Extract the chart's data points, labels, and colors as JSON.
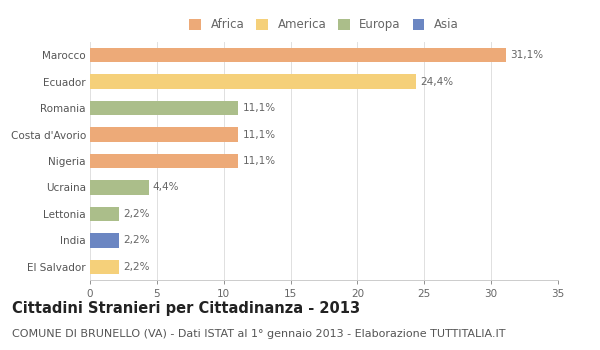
{
  "countries": [
    "Marocco",
    "Ecuador",
    "Romania",
    "Costa d'Avorio",
    "Nigeria",
    "Ucraina",
    "Lettonia",
    "India",
    "El Salvador"
  ],
  "values": [
    31.1,
    24.4,
    11.1,
    11.1,
    11.1,
    4.4,
    2.2,
    2.2,
    2.2
  ],
  "labels": [
    "31,1%",
    "24,4%",
    "11,1%",
    "11,1%",
    "11,1%",
    "4,4%",
    "2,2%",
    "2,2%",
    "2,2%"
  ],
  "colors": [
    "#EDAA78",
    "#F5D07A",
    "#ABBE8A",
    "#EDAA78",
    "#EDAA78",
    "#ABBE8A",
    "#ABBE8A",
    "#6B86C2",
    "#F5D07A"
  ],
  "legend": [
    "Africa",
    "America",
    "Europa",
    "Asia"
  ],
  "legend_colors": [
    "#EDAA78",
    "#F5D07A",
    "#ABBE8A",
    "#6B86C2"
  ],
  "title": "Cittadini Stranieri per Cittadinanza - 2013",
  "subtitle": "COMUNE DI BRUNELLO (VA) - Dati ISTAT al 1° gennaio 2013 - Elaborazione TUTTITALIA.IT",
  "xlim": [
    0,
    35
  ],
  "xticks": [
    0,
    5,
    10,
    15,
    20,
    25,
    30,
    35
  ],
  "background_color": "#ffffff",
  "grid_color": "#e0e0e0",
  "bar_height": 0.55,
  "title_fontsize": 10.5,
  "subtitle_fontsize": 8,
  "label_fontsize": 7.5,
  "tick_fontsize": 7.5,
  "legend_fontsize": 8.5
}
